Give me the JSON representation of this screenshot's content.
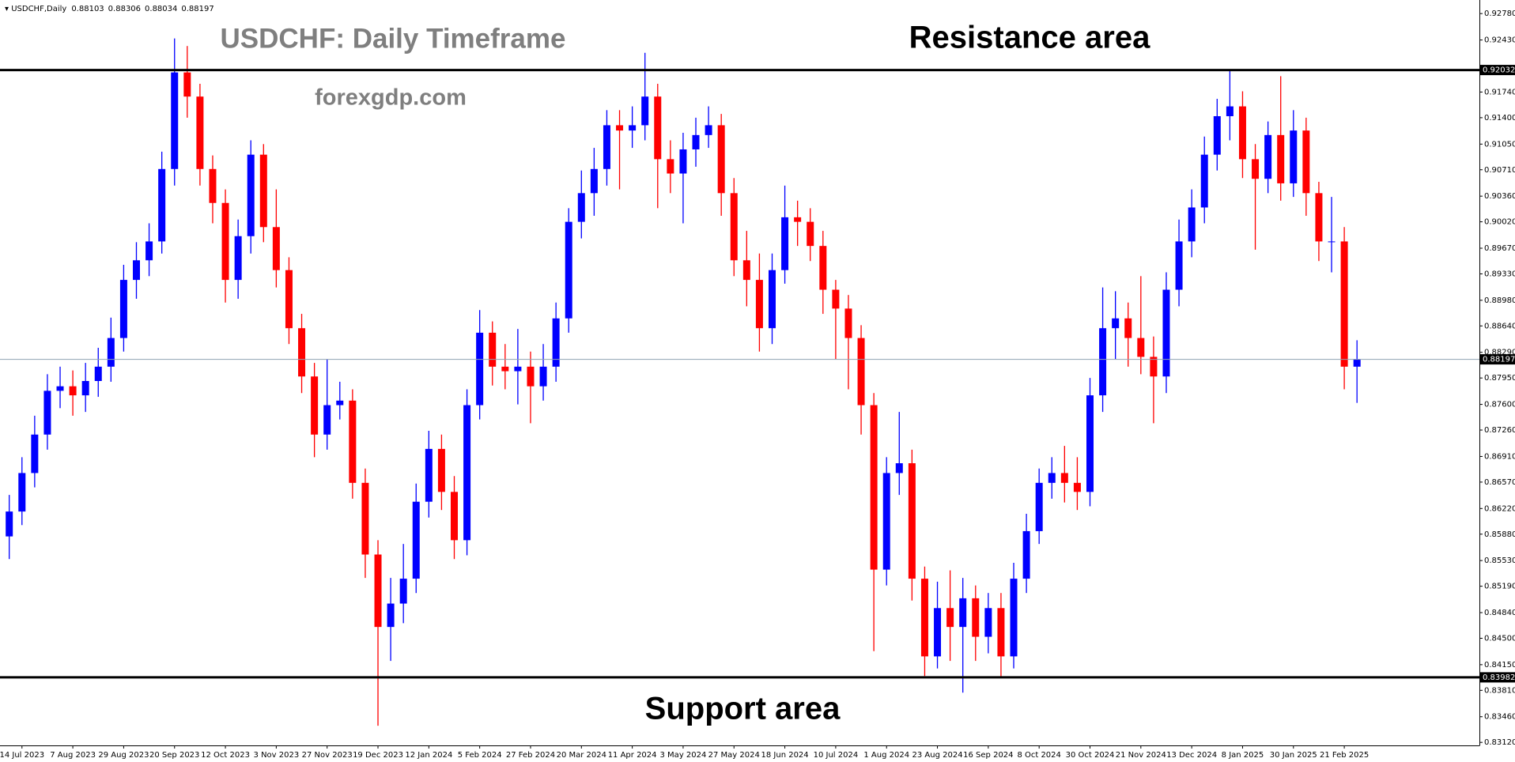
{
  "chart_data": {
    "type": "candlestick",
    "header": "USDCHF,Daily",
    "readout": [
      0.88103,
      0.88306,
      0.88034,
      0.88197
    ],
    "title": "USDCHF: Daily Timeframe",
    "subtitle": "forexgdp.com",
    "annotations": [
      "Resistance area",
      "Support area"
    ],
    "up_color": "#0000ff",
    "down_color": "#ff0000",
    "resistance_level": 0.92032,
    "support_level": 0.83982,
    "current_price": 0.88197,
    "ylim": [
      0.8308,
      0.9296
    ],
    "yticks": [
      {
        "value": 0.9278,
        "label": "0.92780"
      },
      {
        "value": 0.9243,
        "label": "0.92430"
      },
      {
        "value": 0.9174,
        "label": "0.91740"
      },
      {
        "value": 0.914,
        "label": "0.91400"
      },
      {
        "value": 0.9105,
        "label": "0.91050"
      },
      {
        "value": 0.9071,
        "label": "0.90710"
      },
      {
        "value": 0.9036,
        "label": "0.90360"
      },
      {
        "value": 0.9002,
        "label": "0.90020"
      },
      {
        "value": 0.8967,
        "label": "0.89670"
      },
      {
        "value": 0.8933,
        "label": "0.89330"
      },
      {
        "value": 0.8898,
        "label": "0.88980"
      },
      {
        "value": 0.8864,
        "label": "0.88640"
      },
      {
        "value": 0.8829,
        "label": "0.88290"
      },
      {
        "value": 0.8795,
        "label": "0.87950"
      },
      {
        "value": 0.876,
        "label": "0.87600"
      },
      {
        "value": 0.8726,
        "label": "0.87260"
      },
      {
        "value": 0.8691,
        "label": "0.86910"
      },
      {
        "value": 0.8657,
        "label": "0.86570"
      },
      {
        "value": 0.8622,
        "label": "0.86220"
      },
      {
        "value": 0.8588,
        "label": "0.85880"
      },
      {
        "value": 0.8553,
        "label": "0.85530"
      },
      {
        "value": 0.8519,
        "label": "0.85190"
      },
      {
        "value": 0.8484,
        "label": "0.84840"
      },
      {
        "value": 0.845,
        "label": "0.84500"
      },
      {
        "value": 0.8415,
        "label": "0.84150"
      },
      {
        "value": 0.8381,
        "label": "0.83810"
      },
      {
        "value": 0.8346,
        "label": "0.83460"
      },
      {
        "value": 0.8312,
        "label": "0.83120"
      }
    ],
    "categories": [
      null,
      "14 Jul 2023",
      null,
      null,
      null,
      "7 Aug 2023",
      null,
      null,
      null,
      "29 Aug 2023",
      null,
      null,
      null,
      "20 Sep 2023",
      null,
      null,
      null,
      "12 Oct 2023",
      null,
      null,
      null,
      "3 Nov 2023",
      null,
      null,
      null,
      "27 Nov 2023",
      null,
      null,
      null,
      "19 Dec 2023",
      null,
      null,
      null,
      "12 Jan 2024",
      null,
      null,
      null,
      "5 Feb 2024",
      null,
      null,
      null,
      "27 Feb 2024",
      null,
      null,
      null,
      "20 Mar 2024",
      null,
      null,
      null,
      "11 Apr 2024",
      null,
      null,
      null,
      "3 May 2024",
      null,
      null,
      null,
      "27 May 2024",
      null,
      null,
      null,
      "18 Jun 2024",
      null,
      null,
      null,
      "10 Jul 2024",
      null,
      null,
      null,
      "1 Aug 2024",
      null,
      null,
      null,
      "23 Aug 2024",
      null,
      null,
      null,
      "16 Sep 2024",
      null,
      null,
      null,
      "8 Oct 2024",
      null,
      null,
      null,
      "30 Oct 2024",
      null,
      null,
      null,
      "21 Nov 2024",
      null,
      null,
      null,
      "13 Dec 2024",
      null,
      null,
      null,
      "8 Jan 2025",
      null,
      null,
      null,
      "30 Jan 2025",
      null,
      null,
      null,
      "21 Feb 2025",
      null
    ],
    "open": [
      0.8585,
      0.8618,
      0.8669,
      0.872,
      0.8778,
      0.8784,
      0.8772,
      0.8791,
      0.881,
      0.8848,
      0.8925,
      0.8951,
      0.8976,
      0.9072,
      0.92,
      0.9168,
      0.9072,
      0.9027,
      0.8925,
      0.8983,
      0.9091,
      0.8995,
      0.8938,
      0.8861,
      0.8797,
      0.872,
      0.8759,
      0.8765,
      0.8656,
      0.8561,
      0.8465,
      0.8496,
      0.8529,
      0.8631,
      0.8701,
      0.8644,
      0.858,
      0.8759,
      0.8855,
      0.881,
      0.8804,
      0.881,
      0.8784,
      0.881,
      0.8874,
      0.9002,
      0.904,
      0.9072,
      0.913,
      0.9123,
      0.913,
      0.9168,
      0.9085,
      0.9066,
      0.9098,
      0.9117,
      0.913,
      0.904,
      0.8951,
      0.8925,
      0.8861,
      0.8938,
      0.9008,
      0.9002,
      0.897,
      0.8912,
      0.8887,
      0.8848,
      0.8759,
      0.8541,
      0.8669,
      0.8682,
      0.8529,
      0.8426,
      0.849,
      0.8465,
      0.8503,
      0.8452,
      0.849,
      0.8426,
      0.8529,
      0.8592,
      0.8656,
      0.8669,
      0.8656,
      0.8644,
      0.8772,
      0.8861,
      0.8874,
      0.8848,
      0.8823,
      0.8797,
      0.8912,
      0.8976,
      0.9021,
      0.9091,
      0.9142,
      0.9155,
      0.9085,
      0.9059,
      0.9117,
      0.9053,
      0.9123,
      0.904,
      0.8976,
      0.8976,
      0.881
    ],
    "high": [
      0.864,
      0.869,
      0.8745,
      0.88,
      0.881,
      0.8805,
      0.8815,
      0.8835,
      0.8875,
      0.8945,
      0.8975,
      0.9,
      0.9095,
      0.9245,
      0.9235,
      0.9185,
      0.909,
      0.9045,
      0.9005,
      0.911,
      0.9105,
      0.9045,
      0.8955,
      0.888,
      0.8815,
      0.882,
      0.879,
      0.878,
      0.8675,
      0.858,
      0.853,
      0.8575,
      0.8655,
      0.8725,
      0.872,
      0.8665,
      0.878,
      0.8885,
      0.887,
      0.884,
      0.886,
      0.883,
      0.884,
      0.8895,
      0.902,
      0.907,
      0.91,
      0.915,
      0.915,
      0.9155,
      0.9226,
      0.9185,
      0.911,
      0.912,
      0.914,
      0.9155,
      0.9145,
      0.906,
      0.899,
      0.896,
      0.896,
      0.905,
      0.903,
      0.902,
      0.899,
      0.8925,
      0.8905,
      0.8865,
      0.8775,
      0.869,
      0.875,
      0.87,
      0.8545,
      0.8525,
      0.854,
      0.853,
      0.852,
      0.851,
      0.851,
      0.855,
      0.8615,
      0.8675,
      0.869,
      0.8705,
      0.869,
      0.8795,
      0.8915,
      0.891,
      0.8895,
      0.893,
      0.885,
      0.8935,
      0.9005,
      0.9045,
      0.9115,
      0.9165,
      0.9204,
      0.9175,
      0.9105,
      0.9135,
      0.9195,
      0.915,
      0.914,
      0.9055,
      0.9035,
      0.8995,
      0.8845
    ],
    "low": [
      0.8555,
      0.86,
      0.865,
      0.87,
      0.8755,
      0.8745,
      0.875,
      0.877,
      0.879,
      0.883,
      0.89,
      0.893,
      0.896,
      0.905,
      0.914,
      0.905,
      0.9,
      0.8895,
      0.89,
      0.896,
      0.8975,
      0.8915,
      0.884,
      0.8775,
      0.869,
      0.87,
      0.874,
      0.8635,
      0.853,
      0.8334,
      0.842,
      0.847,
      0.851,
      0.861,
      0.862,
      0.8555,
      0.856,
      0.874,
      0.8785,
      0.878,
      0.876,
      0.8735,
      0.8765,
      0.879,
      0.8855,
      0.898,
      0.901,
      0.905,
      0.9045,
      0.91,
      0.911,
      0.902,
      0.904,
      0.9,
      0.9075,
      0.91,
      0.901,
      0.893,
      0.889,
      0.883,
      0.884,
      0.892,
      0.897,
      0.895,
      0.888,
      0.882,
      0.878,
      0.872,
      0.8433,
      0.852,
      0.864,
      0.85,
      0.84,
      0.841,
      0.842,
      0.8378,
      0.842,
      0.843,
      0.8398,
      0.841,
      0.851,
      0.8575,
      0.8635,
      0.863,
      0.862,
      0.8625,
      0.875,
      0.882,
      0.881,
      0.88,
      0.8735,
      0.8775,
      0.889,
      0.8955,
      0.9,
      0.907,
      0.911,
      0.906,
      0.8965,
      0.904,
      0.903,
      0.9035,
      0.901,
      0.895,
      0.8935,
      0.878,
      0.8762
    ],
    "close": [
      0.8618,
      0.8669,
      0.872,
      0.8778,
      0.8784,
      0.8772,
      0.8791,
      0.881,
      0.8848,
      0.8925,
      0.8951,
      0.8976,
      0.9072,
      0.92,
      0.9168,
      0.9072,
      0.9027,
      0.8925,
      0.8983,
      0.9091,
      0.8995,
      0.8938,
      0.8861,
      0.8797,
      0.872,
      0.8759,
      0.8765,
      0.8656,
      0.8561,
      0.8465,
      0.8496,
      0.8529,
      0.8631,
      0.8701,
      0.8644,
      0.858,
      0.8759,
      0.8855,
      0.881,
      0.8804,
      0.881,
      0.8784,
      0.881,
      0.8874,
      0.9002,
      0.904,
      0.9072,
      0.913,
      0.9123,
      0.913,
      0.9168,
      0.9085,
      0.9066,
      0.9098,
      0.9117,
      0.913,
      0.904,
      0.8951,
      0.8925,
      0.8861,
      0.8938,
      0.9008,
      0.9002,
      0.897,
      0.8912,
      0.8887,
      0.8848,
      0.8759,
      0.8541,
      0.8669,
      0.8682,
      0.8529,
      0.8426,
      0.849,
      0.8465,
      0.8503,
      0.8452,
      0.849,
      0.8426,
      0.8529,
      0.8592,
      0.8656,
      0.8669,
      0.8656,
      0.8644,
      0.8772,
      0.8861,
      0.8874,
      0.8848,
      0.8823,
      0.8797,
      0.8912,
      0.8976,
      0.9021,
      0.9091,
      0.9142,
      0.9155,
      0.9085,
      0.9059,
      0.9117,
      0.9053,
      0.9123,
      0.904,
      0.8976,
      0.8976,
      0.881,
      0.88197
    ]
  }
}
